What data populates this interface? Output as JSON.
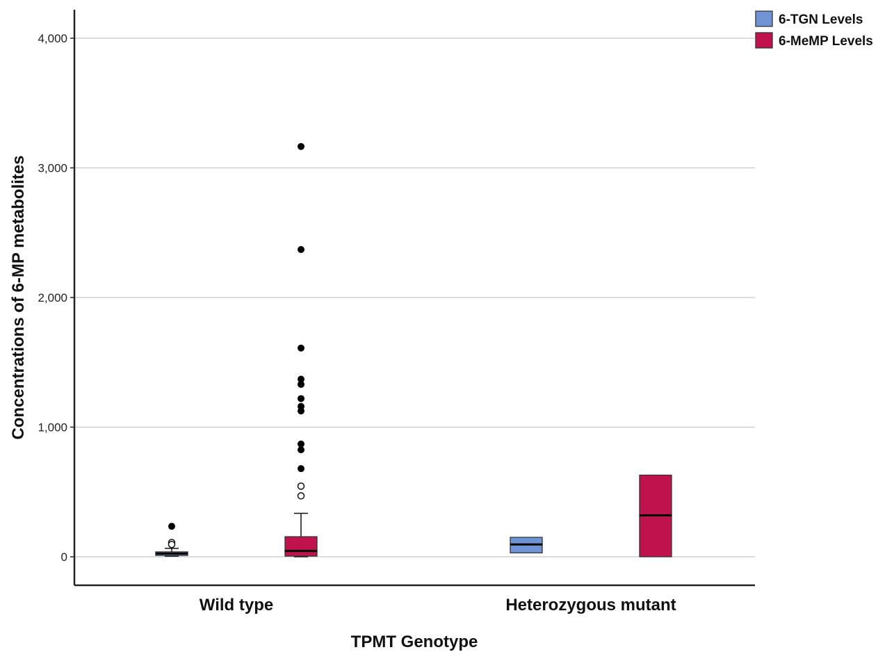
{
  "chart_data": {
    "type": "boxplot",
    "xlabel": "TPMT Genotype",
    "ylabel": "Concentrations of 6-MP metabolites",
    "ylim": [
      -220,
      4230
    ],
    "yticks": [
      0,
      1000,
      2000,
      3000,
      4000
    ],
    "ytick_labels": [
      "0",
      "1,000",
      "2,000",
      "3,000",
      "4,000"
    ],
    "grid": true,
    "legend_position": "top-right",
    "categories": [
      "Wild type",
      "Heterozygous mutant"
    ],
    "series": [
      {
        "name": "6-TGN Levels",
        "color": "#6f94d6",
        "boxes": [
          {
            "category": "Wild type",
            "whisker_low": 5,
            "q1": 10,
            "median": 25,
            "q3": 38,
            "whisker_high": 65,
            "outliers": [
              110,
              95
            ],
            "extremes": [
              235
            ]
          },
          {
            "category": "Heterozygous mutant",
            "whisker_low": 30,
            "q1": 30,
            "median": 95,
            "q3": 150,
            "whisker_high": 150,
            "outliers": [],
            "extremes": []
          }
        ]
      },
      {
        "name": "6-MeMP Levels",
        "color": "#c0134e",
        "boxes": [
          {
            "category": "Wild type",
            "whisker_low": 0,
            "q1": 5,
            "median": 45,
            "q3": 155,
            "whisker_high": 335,
            "outliers": [
              545,
              470
            ],
            "extremes": [
              680,
              825,
              870,
              1125,
              1160,
              1220,
              1330,
              1370,
              1610,
              2370,
              3165
            ]
          },
          {
            "category": "Heterozygous mutant",
            "whisker_low": 0,
            "q1": 0,
            "median": 320,
            "q3": 630,
            "whisker_high": 630,
            "outliers": [],
            "extremes": []
          }
        ]
      }
    ]
  }
}
